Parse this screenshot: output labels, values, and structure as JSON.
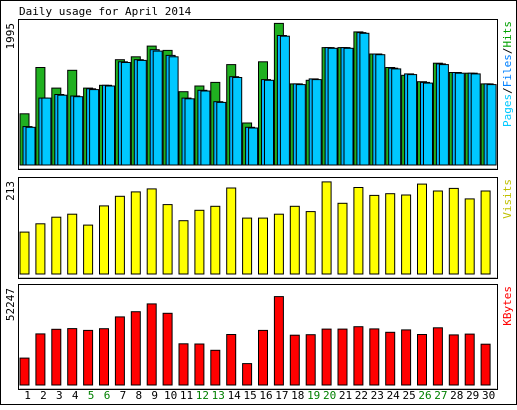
{
  "chart_data": {
    "type": "bar",
    "title": "Daily usage for April 2014",
    "days": [
      "1",
      "2",
      "3",
      "4",
      "5",
      "6",
      "7",
      "8",
      "9",
      "10",
      "11",
      "12",
      "13",
      "14",
      "15",
      "16",
      "17",
      "18",
      "19",
      "20",
      "21",
      "22",
      "23",
      "24",
      "25",
      "26",
      "27",
      "28",
      "29",
      "30"
    ],
    "weekend_days": [
      "5",
      "6",
      "12",
      "13",
      "19",
      "20",
      "26",
      "27"
    ],
    "colors": {
      "pages": "#00c8ff",
      "files": "#00b4ff",
      "hits": "#20b020",
      "visits": "#ffff00",
      "kbytes": "#ff0000",
      "weekday_label": "#000000",
      "weekend_label": "#008000",
      "background": "#ffffff",
      "frame": "#000000"
    },
    "panels": [
      {
        "id": "usage",
        "ylabel": "1995",
        "ymax": 1995,
        "legend": [
          {
            "text": "Pages",
            "color": "#00c8ff"
          },
          {
            "text": "Files",
            "color": "#0080ff"
          },
          {
            "text": "Hits",
            "color": "#00a000"
          }
        ],
        "legend_separator": "/",
        "series": [
          {
            "name": "Hits",
            "values": [
              720,
              1370,
              1080,
              1330,
              1080,
              1120,
              1480,
              1520,
              1670,
              1610,
              1030,
              1110,
              1160,
              1410,
              590,
              1450,
              1990,
              1140,
              1190,
              1650,
              1650,
              1870,
              1560,
              1370,
              1260,
              1170,
              1430,
              1300,
              1290,
              1140
            ]
          },
          {
            "name": "Files",
            "values": [
              540,
              940,
              990,
              970,
              1070,
              1120,
              1450,
              1480,
              1620,
              1540,
              940,
              1050,
              890,
              1240,
              530,
              1200,
              1820,
              1140,
              1210,
              1650,
              1650,
              1860,
              1560,
              1360,
              1280,
              1160,
              1420,
              1300,
              1290,
              1140
            ]
          },
          {
            "name": "Pages",
            "values": [
              530,
              940,
              980,
              960,
              1060,
              1110,
              1440,
              1470,
              1600,
              1520,
              930,
              1040,
              880,
              1230,
              520,
              1190,
              1810,
              1130,
              1200,
              1640,
              1640,
              1850,
              1550,
              1350,
              1270,
              1150,
              1410,
              1290,
              1280,
              1130
            ]
          }
        ]
      },
      {
        "id": "visits",
        "ylabel": "213",
        "ymax": 213,
        "legend": [
          {
            "text": "Visits",
            "color": "#c0c000"
          }
        ],
        "legend_separator": "",
        "series": [
          {
            "name": "Visits",
            "values": [
              96,
              115,
              130,
              137,
              112,
              156,
              178,
              188,
              195,
              159,
              122,
              146,
              155,
              197,
              128,
              128,
              137,
              155,
              143,
              211,
              162,
              198,
              180,
              184,
              181,
              206,
              190,
              196,
              172,
              190
            ]
          }
        ]
      },
      {
        "id": "kbytes",
        "ylabel": "52247",
        "ymax": 52247,
        "legend": [
          {
            "text": "KBytes",
            "color": "#ff0000"
          }
        ],
        "legend_separator": "",
        "series": [
          {
            "name": "KBytes",
            "values": [
              14500,
              27500,
              30000,
              30400,
              29400,
              30300,
              36700,
              39500,
              43700,
              38600,
              22200,
              22100,
              18700,
              27200,
              11500,
              29400,
              47600,
              26800,
              27100,
              30100,
              30100,
              31400,
              30200,
              28400,
              29700,
              27200,
              30800,
              27000,
              27400,
              22000
            ]
          }
        ]
      }
    ]
  }
}
